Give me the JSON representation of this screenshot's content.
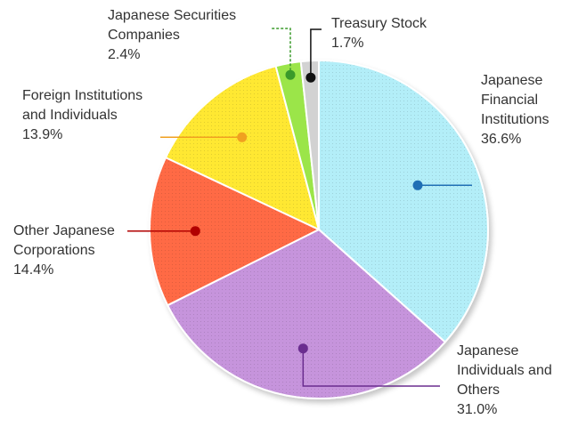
{
  "chart_data": {
    "type": "pie",
    "start_angle_deg": 0,
    "direction": "clockwise",
    "slices": [
      {
        "label_lines": [
          "Japanese",
          "Financial",
          "Institutions"
        ],
        "value": 36.6,
        "value_text": "36.6%",
        "color": "#b3eef8",
        "marker_color": "#1f6fb5",
        "pattern": "dots"
      },
      {
        "label_lines": [
          "Japanese",
          "Individuals and",
          "Others"
        ],
        "value": 31.0,
        "value_text": "31.0%",
        "color": "#c694dc",
        "marker_color": "#6a2d8f",
        "pattern": "dots"
      },
      {
        "label_lines": [
          "Other Japanese",
          "Corporations"
        ],
        "value": 14.4,
        "value_text": "14.4%",
        "color": "#ff6a45",
        "marker_color": "#b10000",
        "pattern": "dots"
      },
      {
        "label_lines": [
          "Foreign Institutions",
          "and Individuals"
        ],
        "value": 13.9,
        "value_text": "13.9%",
        "color": "#ffe833",
        "marker_color": "#f0a020",
        "pattern": "dots"
      },
      {
        "label_lines": [
          "Japanese Securities",
          "Companies"
        ],
        "value": 2.4,
        "value_text": "2.4%",
        "color": "#9be54a",
        "marker_color": "#3a9a2a",
        "pattern": "none"
      },
      {
        "label_lines": [
          "Treasury Stock"
        ],
        "value": 1.7,
        "value_text": "1.7%",
        "color": "#d2d2d2",
        "marker_color": "#111111",
        "pattern": "none"
      }
    ]
  }
}
